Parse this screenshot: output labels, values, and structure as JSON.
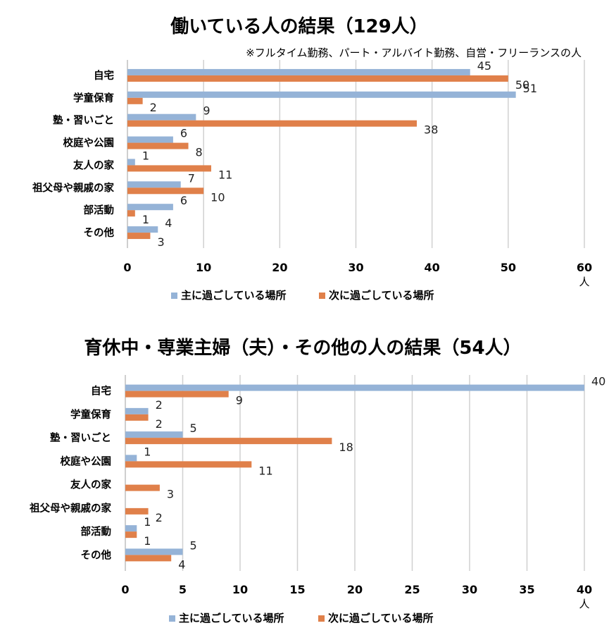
{
  "colors": {
    "primary": "#95b3d7",
    "secondary": "#e0804a"
  },
  "chart_data": [
    {
      "type": "bar",
      "orientation": "horizontal",
      "title": "働いている人の結果（129人）",
      "subtitle": "※フルタイム勤務、パート・アルバイト勤務、自営・フリーランスの人",
      "categories": [
        "自宅",
        "学童保育",
        "塾・習いごと",
        "校庭や公園",
        "友人の家",
        "祖父母や親戚の家",
        "部活動",
        "その他"
      ],
      "series": [
        {
          "name": "主に過ごしている場所",
          "values": [
            45,
            51,
            9,
            6,
            1,
            7,
            6,
            4
          ]
        },
        {
          "name": "次に過ごしている場所",
          "values": [
            50,
            2,
            38,
            8,
            11,
            10,
            1,
            3
          ]
        }
      ],
      "xlim": [
        0,
        60
      ],
      "ticks": [
        0,
        10,
        20,
        30,
        40,
        50,
        60
      ],
      "tick_labels": [
        "0",
        "10",
        "20",
        "30",
        "40",
        "50",
        "60"
      ],
      "unit": "人",
      "grid": true,
      "legend": "bottom"
    },
    {
      "type": "bar",
      "orientation": "horizontal",
      "title": "育休中・専業主婦（夫）・その他の人の結果（54人）",
      "subtitle": "",
      "categories": [
        "自宅",
        "学童保育",
        "塾・習いごと",
        "校庭や公園",
        "友人の家",
        "祖父母や親戚の家",
        "部活動",
        "その他"
      ],
      "series": [
        {
          "name": "主に過ごしている場所",
          "values": [
            40,
            2,
            5,
            1,
            null,
            null,
            1,
            5
          ]
        },
        {
          "name": "次に過ごしている場所",
          "values": [
            9,
            2,
            18,
            11,
            3,
            2,
            1,
            4
          ]
        }
      ],
      "xlim": [
        0,
        40
      ],
      "ticks": [
        0,
        5,
        10,
        15,
        20,
        25,
        30,
        35,
        40
      ],
      "tick_labels": [
        "0",
        "5",
        "10",
        "15",
        "20",
        "25",
        "30",
        "35",
        "40"
      ],
      "unit": "人",
      "grid": true,
      "legend": "bottom"
    }
  ]
}
